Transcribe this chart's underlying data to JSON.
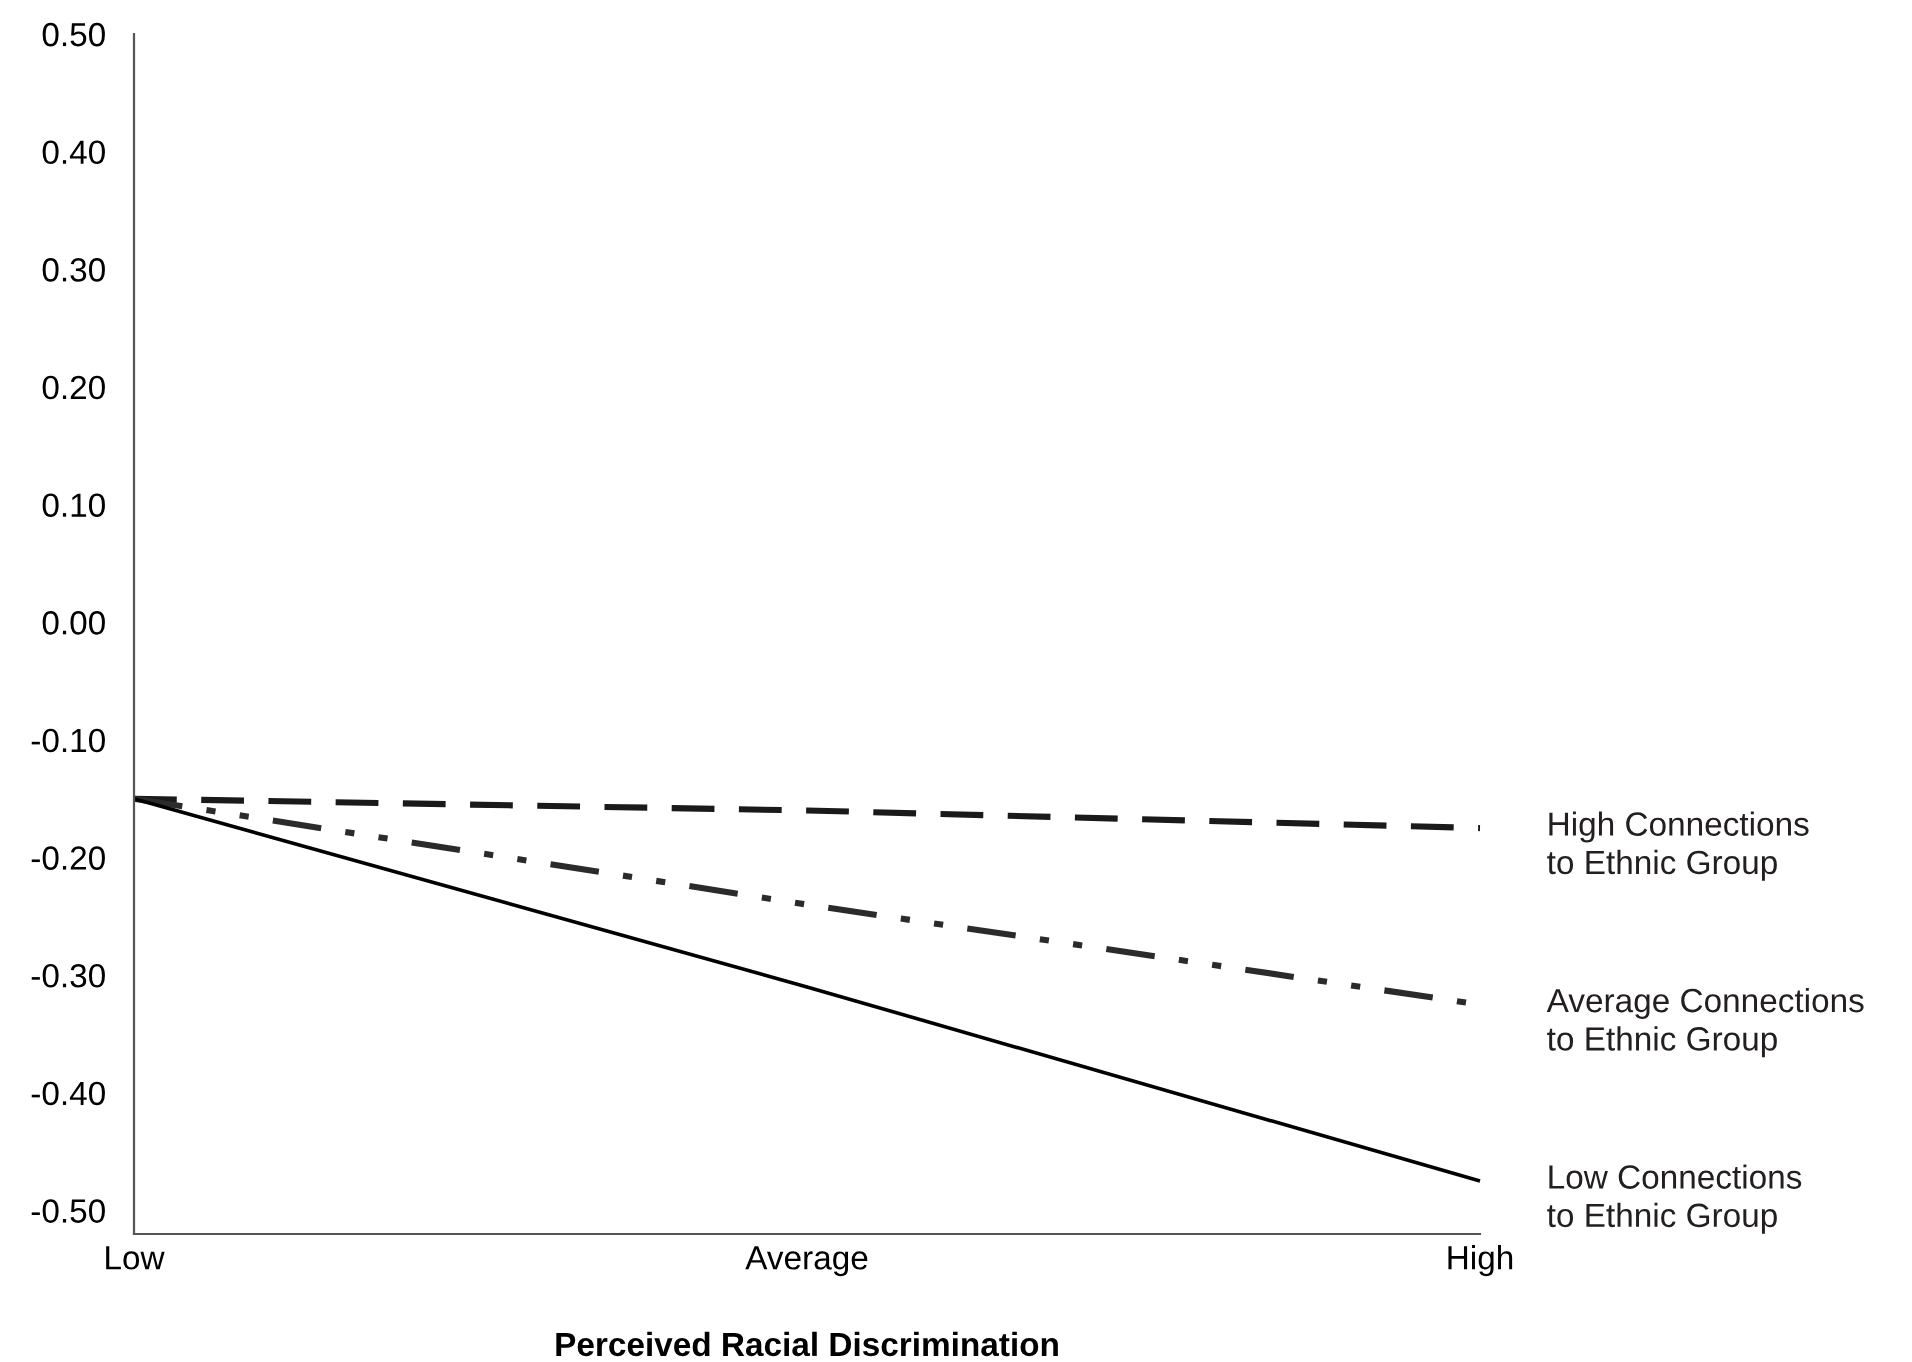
{
  "chart_data": {
    "type": "line",
    "xlabel": "Perceived Racial Discrimination",
    "categories": [
      "Low",
      "Average",
      "High"
    ],
    "series": [
      {
        "name": "High Connections\nto Ethnic Group",
        "color": "#1a1a1a",
        "line_style": "dashed",
        "values": [
          -0.15,
          -0.16,
          -0.175
        ]
      },
      {
        "name": "Average Connections\nto Ethnic Group",
        "color": "#2b2b2b",
        "line_style": "dashdotdot",
        "values": [
          -0.15,
          -0.24,
          -0.325
        ]
      },
      {
        "name": "Low Connections\nto Ethnic Group",
        "color": "#000000",
        "line_style": "solid",
        "values": [
          -0.15,
          -0.31,
          -0.475
        ]
      }
    ],
    "ylim": [
      -0.52,
      0.5
    ],
    "yticks": [
      {
        "value": 0.5,
        "label": "0.50"
      },
      {
        "value": 0.4,
        "label": "0.40"
      },
      {
        "value": 0.3,
        "label": "0.30"
      },
      {
        "value": 0.2,
        "label": "0.20"
      },
      {
        "value": 0.1,
        "label": "0.10"
      },
      {
        "value": 0.0,
        "label": "0.00"
      },
      {
        "value": -0.1,
        "label": "-0.10"
      },
      {
        "value": -0.2,
        "label": "-0.20"
      },
      {
        "value": -0.3,
        "label": "-0.30"
      },
      {
        "value": -0.4,
        "label": "-0.40"
      },
      {
        "value": -0.5,
        "label": "-0.50"
      }
    ],
    "grid": false,
    "legend": false,
    "marker": "none"
  }
}
